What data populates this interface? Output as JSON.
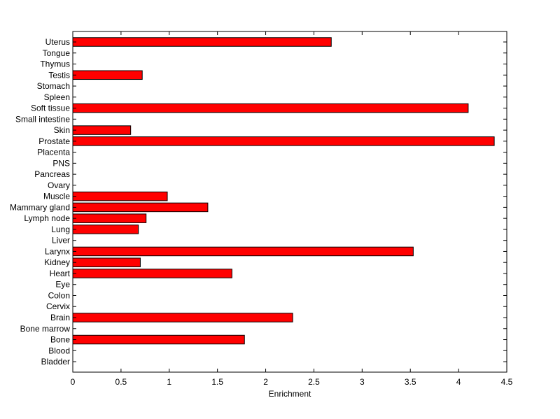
{
  "chart_data": {
    "type": "bar",
    "orientation": "horizontal",
    "categories": [
      "Uterus",
      "Tongue",
      "Thymus",
      "Testis",
      "Stomach",
      "Spleen",
      "Soft tissue",
      "Small intestine",
      "Skin",
      "Prostate",
      "Placenta",
      "PNS",
      "Pancreas",
      "Ovary",
      "Muscle",
      "Mammary gland",
      "Lymph node",
      "Lung",
      "Liver",
      "Larynx",
      "Kidney",
      "Heart",
      "Eye",
      "Colon",
      "Cervix",
      "Brain",
      "Bone marrow",
      "Bone",
      "Blood",
      "Bladder"
    ],
    "values": [
      2.68,
      0,
      0,
      0.72,
      0,
      0,
      4.1,
      0,
      0.6,
      4.37,
      0,
      0,
      0,
      0,
      0.98,
      1.4,
      0.76,
      0.68,
      0,
      3.53,
      0.7,
      1.65,
      0,
      0,
      0,
      2.28,
      0,
      1.78,
      0,
      0
    ],
    "xlabel": "Enrichment",
    "ylabel": "",
    "title": "",
    "xlim": [
      0,
      4.5
    ],
    "xticks": [
      0,
      0.5,
      1,
      1.5,
      2,
      2.5,
      3,
      3.5,
      4,
      4.5
    ],
    "xtick_labels": [
      "0",
      "0.5",
      "1",
      "1.5",
      "2",
      "2.5",
      "3",
      "3.5",
      "4",
      "4.5"
    ],
    "bar_color": "#ff0000",
    "bar_edge_color": "#000000",
    "grid": false,
    "legend": "none"
  }
}
